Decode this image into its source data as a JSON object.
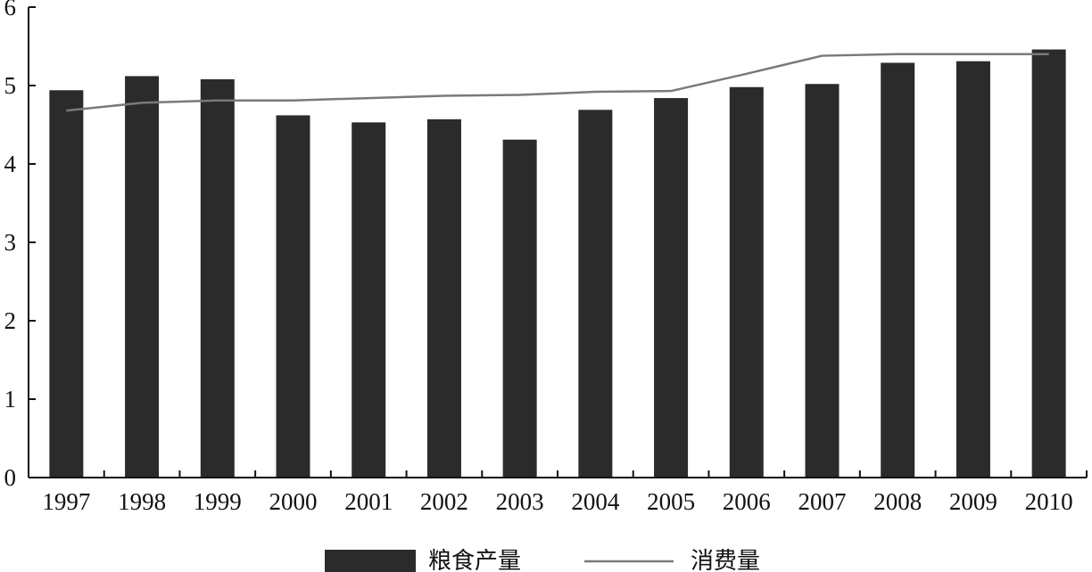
{
  "chart_data": {
    "type": "bar",
    "categories": [
      "1997",
      "1998",
      "1999",
      "2000",
      "2001",
      "2002",
      "2003",
      "2004",
      "2005",
      "2006",
      "2007",
      "2008",
      "2009",
      "2010"
    ],
    "series": [
      {
        "name": "粮食产量",
        "kind": "bar",
        "color": "#2b2b2b",
        "values": [
          4.94,
          5.12,
          5.08,
          4.62,
          4.53,
          4.57,
          4.31,
          4.69,
          4.84,
          4.98,
          5.02,
          5.29,
          5.31,
          5.46
        ]
      },
      {
        "name": "消费量",
        "kind": "line",
        "color": "#7a7a7a",
        "values": [
          4.68,
          4.78,
          4.81,
          4.81,
          4.84,
          4.87,
          4.88,
          4.92,
          4.93,
          5.15,
          5.38,
          5.4,
          5.4,
          5.4
        ]
      }
    ],
    "y_ticks": [
      "0",
      "1",
      "2",
      "3",
      "4",
      "5",
      "6"
    ],
    "ylim": [
      0,
      6
    ],
    "grid": false,
    "legend_position": "bottom-center"
  }
}
